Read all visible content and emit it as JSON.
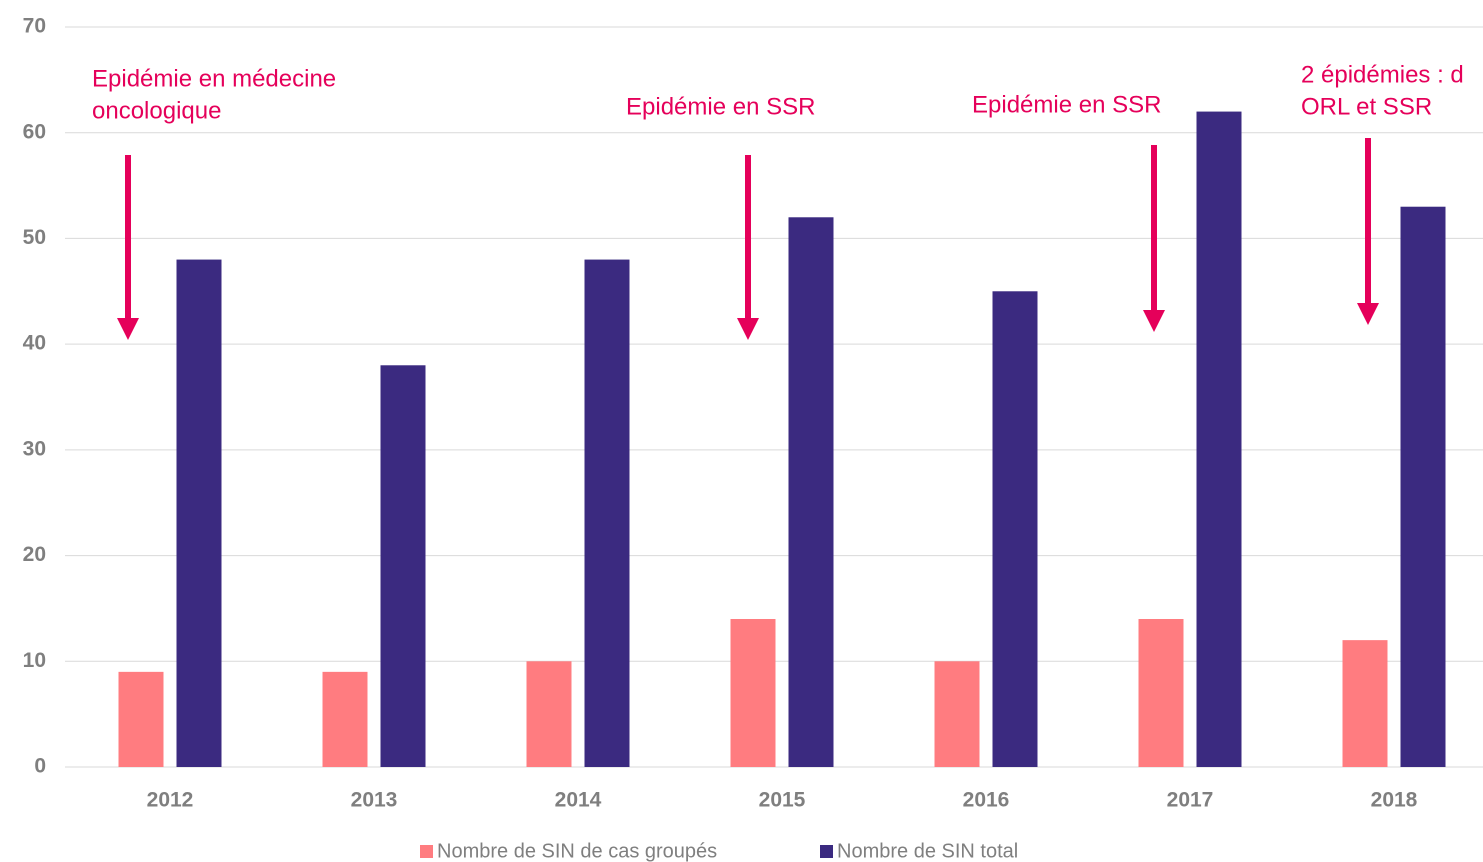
{
  "chart_data": {
    "type": "bar",
    "categories": [
      "2012",
      "2013",
      "2014",
      "2015",
      "2016",
      "2017",
      "2018"
    ],
    "series": [
      {
        "name": "Nombre de SIN de cas groupés",
        "color": "#ff7c80",
        "values": [
          9,
          9,
          10,
          14,
          10,
          14,
          12
        ]
      },
      {
        "name": "Nombre de SIN total",
        "color": "#3b2a80",
        "values": [
          48,
          38,
          48,
          52,
          45,
          62,
          53
        ]
      }
    ],
    "ylim": [
      0,
      70
    ],
    "yticks": [
      0,
      10,
      20,
      30,
      40,
      50,
      60,
      70
    ],
    "grid": true,
    "legend": "bottom",
    "annotation_color": "#e5005a",
    "annotations": [
      {
        "lines": [
          "Epidémie en médecine",
          "oncologique"
        ]
      },
      {
        "lines": [
          "Epidémie en SSR"
        ]
      },
      {
        "lines": [
          "Epidémie en SSR"
        ]
      },
      {
        "lines": [
          "2 épidémies : d",
          "ORL et SSR"
        ]
      }
    ]
  }
}
